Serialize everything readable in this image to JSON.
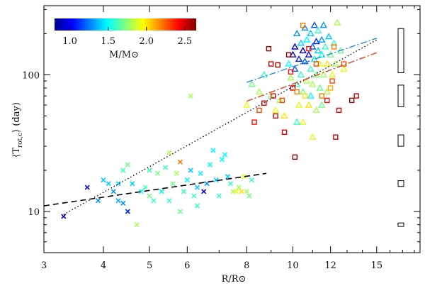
{
  "chart_data": {
    "type": "scatter",
    "title": "",
    "xlabel": "R/R⊙",
    "ylabel_parts": {
      "open": "⟨T",
      "sub": "rot,c",
      "close": "⟩ (day)"
    },
    "x_scale": "log",
    "y_scale": "log",
    "xlim": [
      3,
      18.5
    ],
    "ylim": [
      5,
      320
    ],
    "x_ticks": [
      {
        "value": 3,
        "label": "3"
      },
      {
        "value": 4,
        "label": "4"
      },
      {
        "value": 5,
        "label": "5"
      },
      {
        "value": 6,
        "label": "6"
      },
      {
        "value": 8,
        "label": "8"
      },
      {
        "value": 10,
        "label": "10"
      },
      {
        "value": 12,
        "label": "12"
      },
      {
        "value": 15,
        "label": "15"
      }
    ],
    "y_ticks": [
      {
        "value": 10,
        "label": "10"
      },
      {
        "value": 100,
        "label": "100"
      }
    ],
    "colorbar": {
      "label": "M/M⊙",
      "range": [
        0.8,
        2.65
      ],
      "ticks": [
        {
          "value": 1.0,
          "label": "1.0"
        },
        {
          "value": 1.5,
          "label": "1.5"
        },
        {
          "value": 2.0,
          "label": "2.0"
        },
        {
          "value": 2.5,
          "label": "2.5"
        }
      ]
    },
    "series": [
      {
        "marker": "cross",
        "points": [
          [
            3.3,
            9.2,
            0.9
          ],
          [
            3.7,
            15,
            1.0
          ],
          [
            3.9,
            12,
            1.3
          ],
          [
            4.0,
            17,
            1.4
          ],
          [
            4.1,
            16,
            1.4
          ],
          [
            4.2,
            14,
            1.3
          ],
          [
            4.3,
            12,
            1.35
          ],
          [
            4.3,
            16,
            1.4
          ],
          [
            4.4,
            20,
            1.6
          ],
          [
            4.5,
            22,
            1.7
          ],
          [
            4.5,
            10,
            1.1
          ],
          [
            4.4,
            11.5,
            1.3
          ],
          [
            4.6,
            16,
            1.4
          ],
          [
            4.7,
            8,
            1.8
          ],
          [
            4.8,
            14,
            1.5
          ],
          [
            4.9,
            15,
            1.6
          ],
          [
            5.0,
            13,
            1.7
          ],
          [
            5.0,
            20,
            1.6
          ],
          [
            5.1,
            12,
            1.6
          ],
          [
            5.2,
            19,
            1.7
          ],
          [
            5.3,
            14,
            1.5
          ],
          [
            5.4,
            21,
            1.6
          ],
          [
            5.5,
            27,
            1.8
          ],
          [
            5.5,
            12,
            1.6
          ],
          [
            5.6,
            16,
            1.7
          ],
          [
            5.7,
            19,
            1.8
          ],
          [
            5.8,
            23,
            2.2
          ],
          [
            5.8,
            10,
            1.7
          ],
          [
            5.9,
            14,
            1.6
          ],
          [
            6.0,
            17,
            1.5
          ],
          [
            6.1,
            20,
            1.4
          ],
          [
            6.1,
            70,
            1.8
          ],
          [
            6.2,
            13,
            1.6
          ],
          [
            6.3,
            15,
            1.4
          ],
          [
            6.3,
            11,
            1.6
          ],
          [
            6.4,
            19,
            1.5
          ],
          [
            6.5,
            14,
            1.0
          ],
          [
            6.6,
            16,
            1.3
          ],
          [
            6.7,
            22,
            1.5
          ],
          [
            6.8,
            28,
            1.5
          ],
          [
            6.9,
            17,
            1.4
          ],
          [
            7.0,
            13,
            1.6
          ],
          [
            7.1,
            24,
            1.5
          ],
          [
            7.2,
            26,
            1.5
          ],
          [
            7.3,
            18,
            1.4
          ],
          [
            7.4,
            16,
            1.6
          ],
          [
            7.5,
            14,
            1.8
          ],
          [
            7.6,
            14,
            1.9
          ],
          [
            7.7,
            15,
            1.8
          ],
          [
            7.8,
            14,
            2.0
          ],
          [
            7.9,
            18,
            1.9
          ],
          [
            8.0,
            14,
            1.8
          ],
          [
            8.1,
            13,
            1.7
          ],
          [
            8.2,
            17,
            1.6
          ]
        ]
      },
      {
        "marker": "triangle",
        "points": [
          [
            8.0,
            60,
            1.9
          ],
          [
            8.2,
            85,
            1.7
          ],
          [
            8.5,
            75,
            1.8
          ],
          [
            8.7,
            100,
            1.6
          ],
          [
            9.0,
            70,
            1.7
          ],
          [
            9.2,
            55,
            1.9
          ],
          [
            9.4,
            65,
            1.8
          ],
          [
            9.6,
            50,
            2.0
          ],
          [
            9.8,
            120,
            1.5
          ],
          [
            9.9,
            95,
            1.8
          ],
          [
            10.0,
            140,
            0.9
          ],
          [
            10.1,
            110,
            1.2
          ],
          [
            10.1,
            160,
            1.0
          ],
          [
            10.2,
            85,
            1.6
          ],
          [
            10.2,
            200,
            1.3
          ],
          [
            10.3,
            130,
            1.1
          ],
          [
            10.3,
            60,
            1.9
          ],
          [
            10.4,
            170,
            1.4
          ],
          [
            10.4,
            100,
            1.6
          ],
          [
            10.5,
            150,
            0.9
          ],
          [
            10.5,
            75,
            1.7
          ],
          [
            10.5,
            45,
            1.9
          ],
          [
            10.6,
            220,
            1.3
          ],
          [
            10.6,
            125,
            1.2
          ],
          [
            10.7,
            180,
            1.5
          ],
          [
            10.7,
            90,
            1.8
          ],
          [
            10.8,
            140,
            1.0
          ],
          [
            10.8,
            60,
            2.0
          ],
          [
            10.9,
            200,
            1.4
          ],
          [
            10.9,
            110,
            1.6
          ],
          [
            11.0,
            160,
            1.2
          ],
          [
            11.0,
            85,
            1.8
          ],
          [
            11.0,
            35,
            1.9
          ],
          [
            11.1,
            230,
            1.2
          ],
          [
            11.1,
            130,
            1.5
          ],
          [
            11.2,
            175,
            1.1
          ],
          [
            11.2,
            100,
            1.7
          ],
          [
            11.2,
            55,
            1.8
          ],
          [
            11.3,
            150,
            1.4
          ],
          [
            11.3,
            210,
            1.6
          ],
          [
            11.4,
            120,
            1.9
          ],
          [
            11.4,
            80,
            1.7
          ],
          [
            11.5,
            180,
            1.3
          ],
          [
            11.5,
            140,
            1.5
          ],
          [
            11.6,
            100,
            1.8
          ],
          [
            11.6,
            230,
            1.3
          ],
          [
            11.7,
            160,
            1.6
          ],
          [
            11.8,
            120,
            2.0
          ],
          [
            11.8,
            75,
            1.8
          ],
          [
            11.9,
            190,
            1.4
          ],
          [
            12.0,
            140,
            1.7
          ],
          [
            12.1,
            100,
            1.9
          ],
          [
            12.2,
            170,
            1.6
          ],
          [
            12.3,
            120,
            1.8
          ],
          [
            12.4,
            240,
            1.8
          ],
          [
            12.6,
            150,
            1.7
          ],
          [
            12.8,
            110,
            1.9
          ],
          [
            10.2,
            45,
            1.6
          ],
          [
            10.9,
            70,
            1.5
          ],
          [
            11.5,
            60,
            1.7
          ]
        ]
      },
      {
        "marker": "square",
        "points": [
          [
            8.3,
            45,
            2.4
          ],
          [
            8.5,
            55,
            2.3
          ],
          [
            8.7,
            62,
            2.5
          ],
          [
            8.9,
            155,
            2.6
          ],
          [
            9.0,
            120,
            2.5
          ],
          [
            9.1,
            70,
            2.4
          ],
          [
            9.2,
            50,
            2.5
          ],
          [
            9.3,
            118,
            2.6
          ],
          [
            9.5,
            65,
            2.3
          ],
          [
            9.6,
            38,
            2.5
          ],
          [
            9.8,
            140,
            2.6
          ],
          [
            9.9,
            105,
            2.4
          ],
          [
            10.0,
            80,
            2.5
          ],
          [
            10.1,
            25,
            2.6
          ],
          [
            10.2,
            75,
            2.2
          ],
          [
            10.5,
            230,
            2.2
          ],
          [
            10.8,
            155,
            2.4
          ],
          [
            11.2,
            120,
            2.3
          ],
          [
            11.5,
            70,
            2.2
          ],
          [
            11.8,
            65,
            2.4
          ],
          [
            12.1,
            90,
            2.3
          ],
          [
            12.3,
            35,
            2.5
          ],
          [
            12.5,
            55,
            2.5
          ],
          [
            12.8,
            120,
            2.3
          ],
          [
            13.3,
            65,
            2.6
          ],
          [
            13.6,
            70,
            2.5
          ],
          [
            12.0,
            80,
            2.1
          ],
          [
            12.2,
            160,
            2.2
          ],
          [
            10.6,
            70,
            2.0
          ]
        ]
      }
    ],
    "fit_lines": [
      {
        "style": "dashed",
        "color": "#000000",
        "x": [
          3.0,
          8.8
        ],
        "y": [
          11,
          19
        ]
      },
      {
        "style": "dotted",
        "color": "#000000",
        "x": [
          3.3,
          15.0
        ],
        "y": [
          9.5,
          180
        ]
      },
      {
        "style": "dashdot",
        "color": "#1f7fd0",
        "x": [
          8.0,
          15.0
        ],
        "y": [
          88,
          185
        ]
      },
      {
        "style": "dashdot",
        "color": "#e03010",
        "x": [
          8.0,
          15.0
        ],
        "y": [
          64,
          145
        ]
      }
    ],
    "right_boxes": [
      {
        "y_center": 150,
        "ratio": 1.45
      },
      {
        "y_center": 70,
        "ratio": 1.2
      },
      {
        "y_center": 33,
        "ratio": 1.1
      },
      {
        "y_center": 16,
        "ratio": 1.05
      },
      {
        "y_center": 8,
        "ratio": 1.03
      }
    ]
  }
}
